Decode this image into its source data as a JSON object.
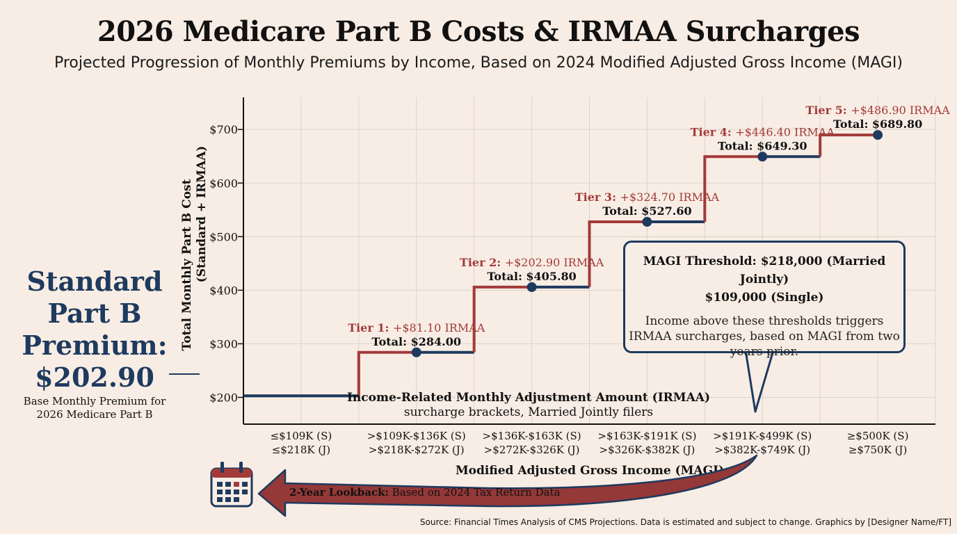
{
  "title": "2026 Medicare Part B Costs & IRMAA Surcharges",
  "subtitle": "Projected Progression of Monthly Premiums by Income, Based on 2024 Modified Adjusted Gross Income (MAGI)",
  "standard_panel": {
    "lines": [
      "Standard",
      "Part B",
      "Premium:",
      "$202.90"
    ],
    "note_lines": [
      "Base Monthly Premium for",
      "2026 Medicare Part B"
    ]
  },
  "callout": {
    "line1": "MAGI Threshold: $218,000 (Married Jointly)",
    "line2": "$109,000 (Single)",
    "body_lines": [
      "Income above these thresholds triggers",
      "IRMAA surcharges, based on MAGI from two",
      "years prior."
    ]
  },
  "lookback": {
    "label_bold": "2-Year Lookback:",
    "label_rest": " Based on 2024 Tax Return Data",
    "icon": "calendar-icon"
  },
  "source": "Source: Financial Times Analysis of CMS Projections. Data is estimated and subject to change. Graphics by [Designer Name/FT]",
  "colors": {
    "navy": "#1e3a5f",
    "red": "#a23a3a",
    "background": "#f8ede4",
    "grid": "#dcd3cb"
  },
  "chart_data": {
    "type": "line",
    "step": true,
    "title": "",
    "ylabel_lines": [
      "Total Monthly Part B Cost",
      "(Standard + IRMAA)"
    ],
    "xlabel": "Modified Adjusted Gross Income (MAGI)",
    "inner_label_lines": [
      "Income-Related Monthly Adjustment Amount (IRMAA)",
      "surcharge brackets, Married Jointly filers"
    ],
    "ylim": [
      150,
      760
    ],
    "yticks": [
      200,
      300,
      400,
      500,
      600,
      700
    ],
    "ytick_labels": [
      "$200",
      "$300",
      "$400",
      "$500",
      "$600",
      "$700"
    ],
    "grid": true,
    "categories": [
      [
        "≤$109K (S)",
        "≤$218K (J)"
      ],
      [
        ">$109K-$136K (S)",
        ">$218K-$272K (J)"
      ],
      [
        ">$136K-$163K (S)",
        ">$272K-$326K (J)"
      ],
      [
        ">$163K-$191K (S)",
        ">$326K-$382K (J)"
      ],
      [
        ">$191K-$499K (S)",
        ">$382K-$749K (J)"
      ],
      [
        "≥$500K (S)",
        "≥$750K (J)"
      ]
    ],
    "values": [
      202.9,
      284.0,
      405.8,
      527.6,
      649.3,
      689.8
    ],
    "tiers": [
      {
        "name": "Tier 1:",
        "surcharge": "+$81.10 IRMAA",
        "total": "Total: $284.00"
      },
      {
        "name": "Tier 2:",
        "surcharge": "+$202.90 IRMAA",
        "total": "Total: $405.80"
      },
      {
        "name": "Tier 3:",
        "surcharge": "+$324.70 IRMAA",
        "total": "Total: $527.60"
      },
      {
        "name": "Tier 4:",
        "surcharge": "+$446.40 IRMAA",
        "total": "Total: $649.30"
      },
      {
        "name": "Tier 5:",
        "surcharge": "+$486.90 IRMAA",
        "total": "Total: $689.80"
      }
    ]
  }
}
